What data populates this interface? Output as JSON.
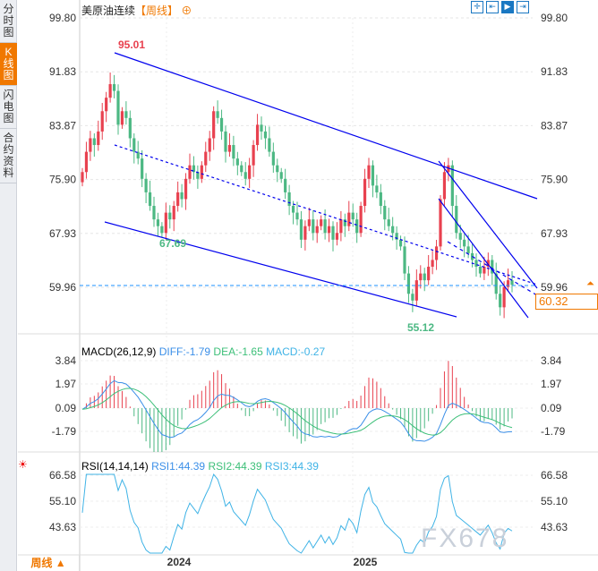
{
  "sidebar": {
    "tabs": [
      {
        "label": "分时图",
        "active": false
      },
      {
        "label": "K线图",
        "active": true
      },
      {
        "label": "闪电图",
        "active": false
      },
      {
        "label": "合约资料",
        "active": false
      }
    ]
  },
  "header": {
    "title": "美原油连续",
    "period": "【周线】",
    "zoom_icon": "circle-plus-icon"
  },
  "toolbar": {
    "icons": [
      "crosshair-icon",
      "range-icon",
      "draw-icon",
      "exit-icon"
    ]
  },
  "colors": {
    "up": "#e8414f",
    "down": "#4cb883",
    "accent": "#f07800",
    "trend": "#0000ee",
    "diff": "#3b8fe8",
    "dea": "#3cbf78",
    "macd": "#3fb3e6",
    "rsi": "#3fb3e6"
  },
  "chart_data": {
    "type": "candlestick",
    "price_ticks": [
      "99.80",
      "91.83",
      "83.87",
      "75.90",
      "67.93",
      "59.96"
    ],
    "ylim": [
      59.96,
      99.8
    ],
    "high_label": "95.01",
    "low_label_1": "67.69",
    "low_label_2": "55.12",
    "last_price": "60.32",
    "closes": [
      77,
      80,
      82,
      81,
      83,
      86,
      88,
      90,
      89,
      84,
      86,
      85,
      82,
      80,
      79,
      76,
      74,
      72,
      70,
      69,
      68,
      71,
      70,
      72,
      74,
      73,
      76,
      78,
      77,
      76,
      78,
      80,
      82,
      86,
      85,
      83,
      80,
      81,
      79,
      78,
      77,
      76,
      78,
      81,
      84,
      83,
      82,
      80,
      78,
      77,
      76,
      74,
      72,
      71,
      70,
      67,
      69,
      70,
      68,
      69,
      70,
      68,
      69,
      67,
      68,
      70,
      69,
      71,
      70,
      68,
      72,
      76,
      78,
      75,
      74,
      72,
      70,
      69,
      68,
      67,
      66,
      62,
      59,
      58,
      61,
      62,
      61,
      63,
      64,
      66,
      73,
      77,
      78,
      72,
      68,
      67,
      66,
      65,
      64,
      63,
      62,
      63,
      64,
      62,
      59,
      57,
      60,
      61,
      60.32
    ],
    "x_ticks": [
      "2024",
      "2025"
    ]
  },
  "macd": {
    "label": "MACD(26,12,9)",
    "diff": "DIFF:-1.79",
    "dea": "DEA:-1.65",
    "macd": "MACD:-0.27",
    "ticks": [
      "3.84",
      "1.97",
      "0.09",
      "-1.79"
    ]
  },
  "rsi": {
    "label": "RSI(14,14,14)",
    "rsi1": "RSI1:44.39",
    "rsi2": "RSI2:44.39",
    "rsi3": "RSI3:44.39",
    "ticks": [
      "66.58",
      "55.10",
      "43.63"
    ]
  },
  "footer": {
    "period": "周线 ▲"
  },
  "watermark": "FX678"
}
